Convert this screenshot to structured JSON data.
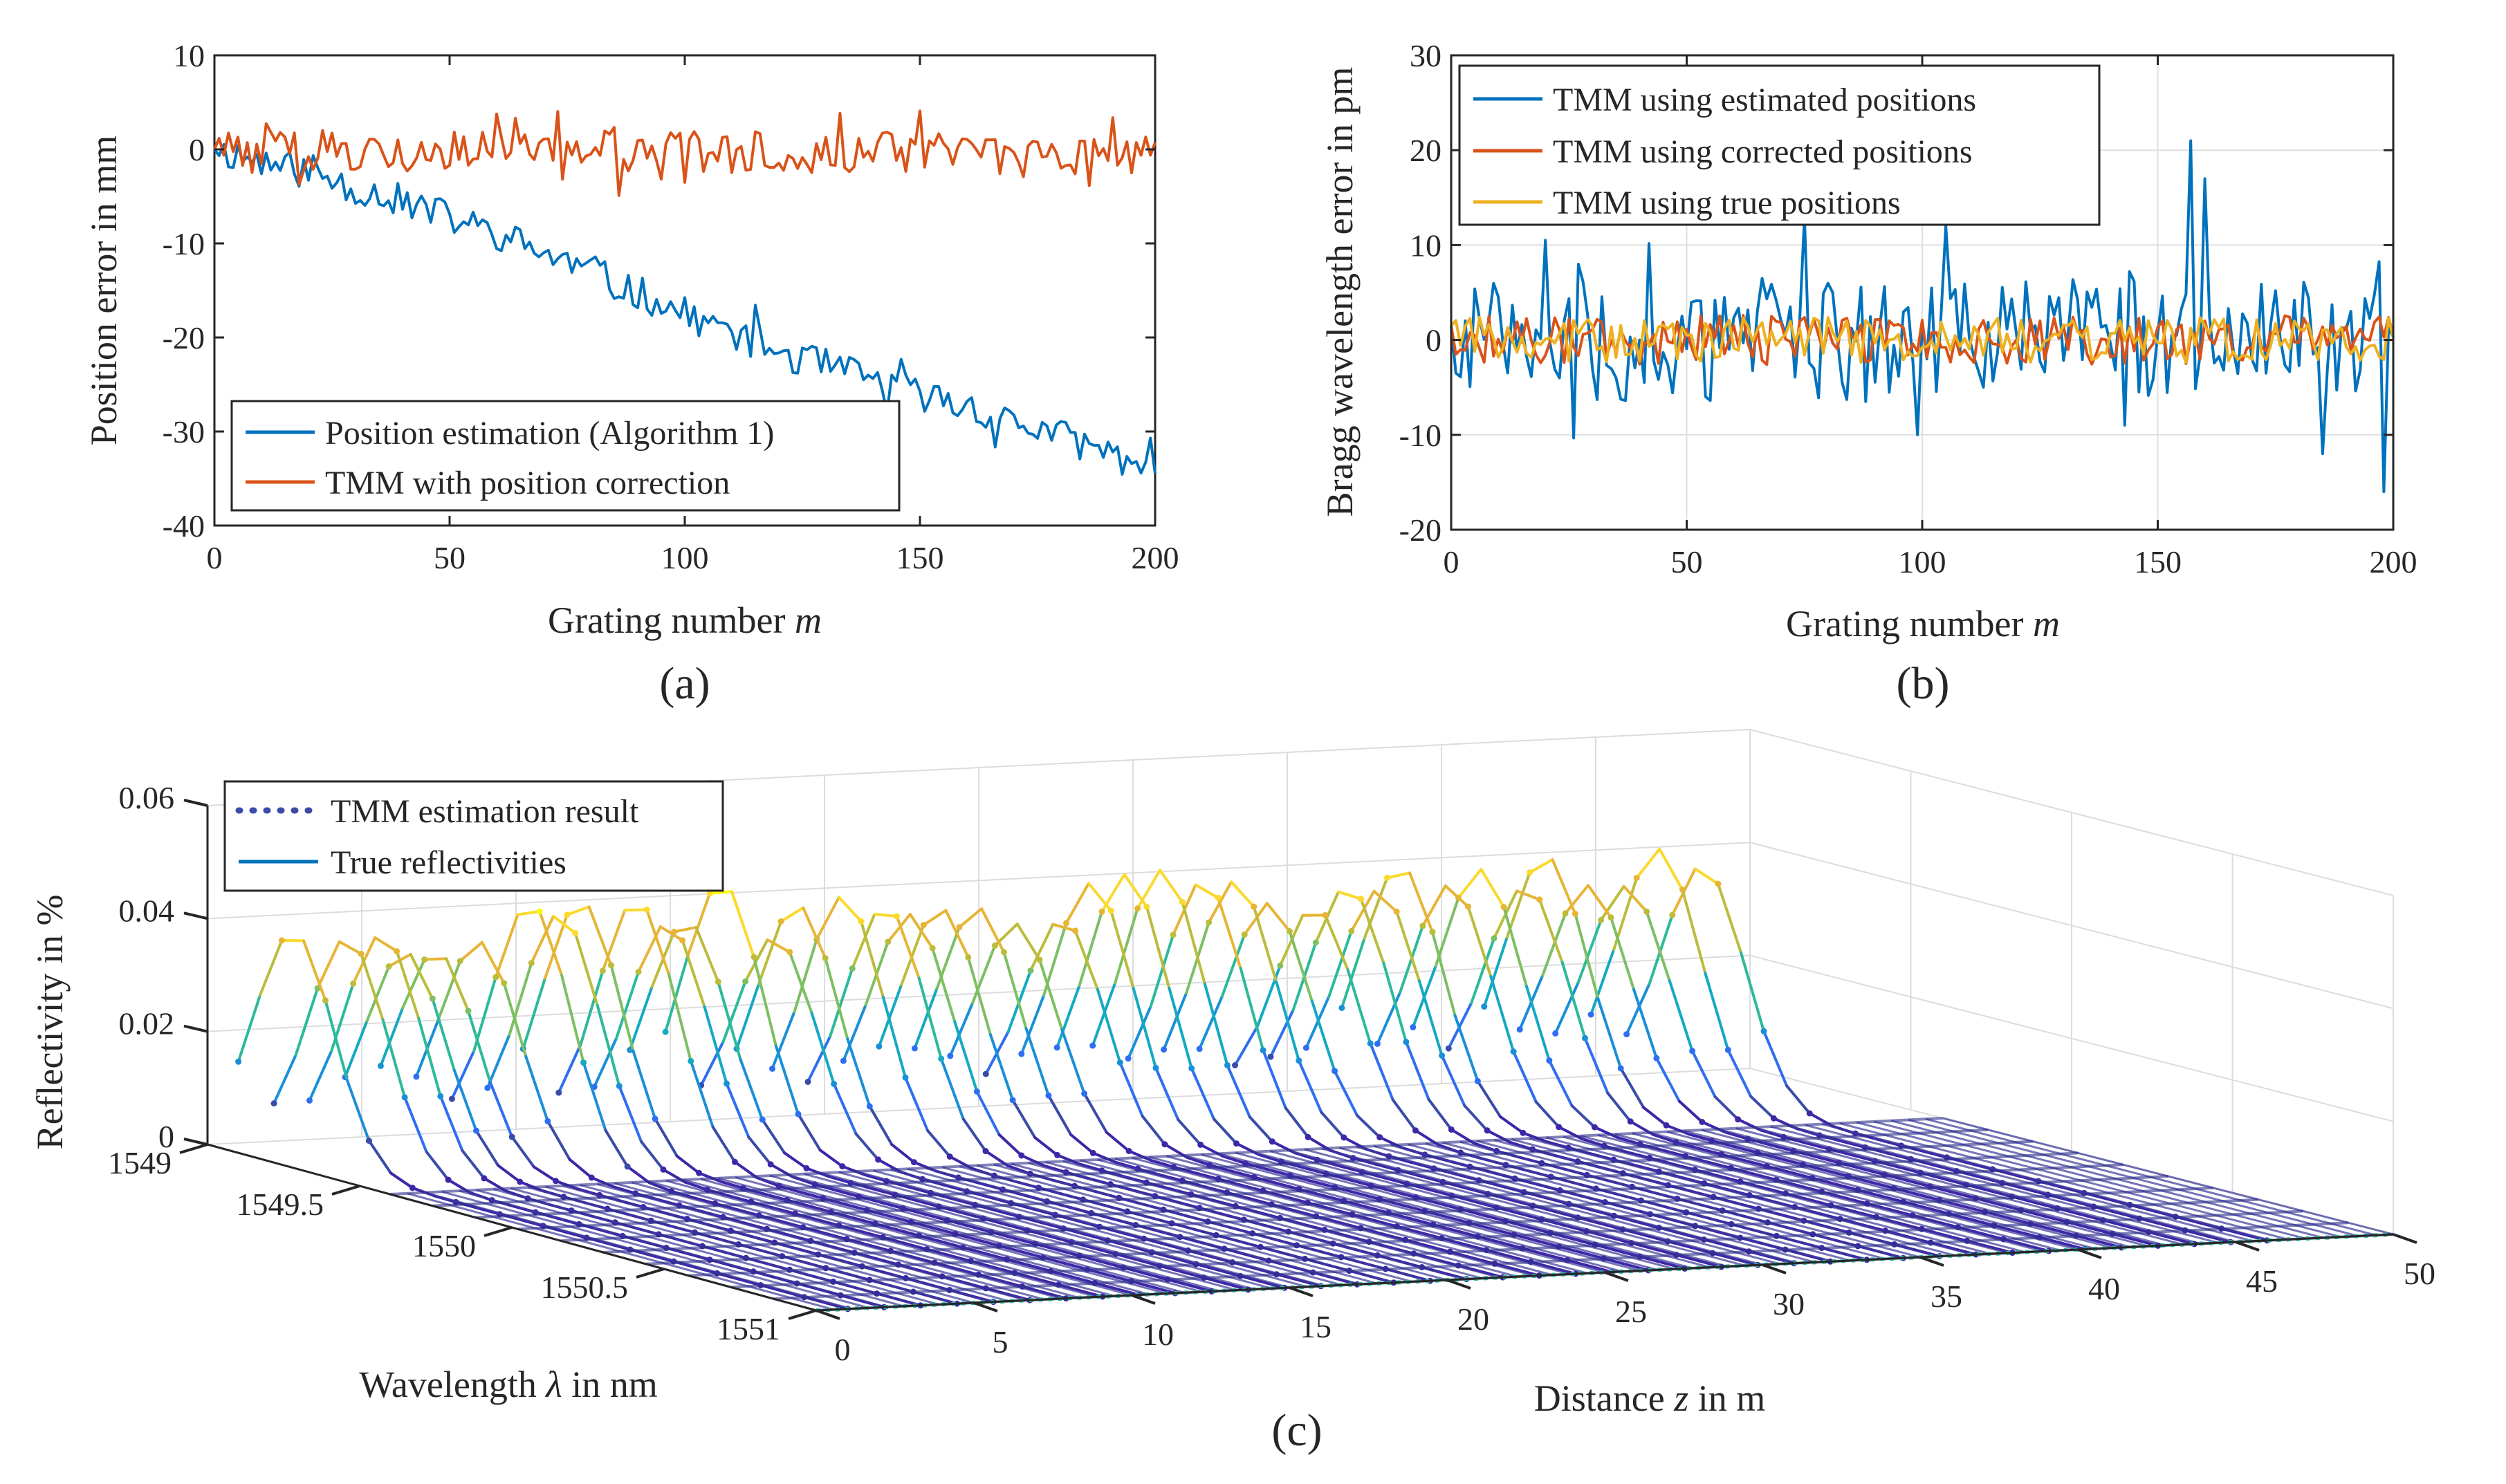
{
  "chart_data": [
    {
      "id": "a",
      "type": "line",
      "caption": "(a)",
      "xlabel": "Grating number",
      "xlabel_var": "m",
      "ylabel": "Position error in mm",
      "xlim": [
        0,
        200
      ],
      "ylim": [
        -40,
        10
      ],
      "xticks": [
        "0",
        "50",
        "100",
        "150",
        "200"
      ],
      "yticks": [
        "10",
        "0",
        "-10",
        "-20",
        "-30",
        "-40"
      ],
      "grid": false,
      "legend_location": "bottom-left",
      "series": [
        {
          "name": "Position estimation (Algorithm 1)",
          "color": "#0072BD",
          "trend": {
            "x": [
              0,
              20,
              40,
              60,
              80,
              100,
              120,
              140,
              160,
              180,
              200
            ],
            "y": [
              0,
              -2.5,
              -5.5,
              -9,
              -13,
              -17.5,
              -21.5,
              -24.5,
              -27.5,
              -30.5,
              -34
            ]
          },
          "noise_amplitude": 1.8
        },
        {
          "name": "TMM with position correction",
          "color": "#D95319",
          "trend": {
            "x": [
              0,
              200
            ],
            "y": [
              0,
              -0.5
            ]
          },
          "noise_amplitude": 2.2
        }
      ]
    },
    {
      "id": "b",
      "type": "line",
      "caption": "(b)",
      "xlabel": "Grating number",
      "xlabel_var": "m",
      "ylabel": "Bragg wavelength error in pm",
      "xlim": [
        0,
        200
      ],
      "ylim": [
        -20,
        30
      ],
      "xticks": [
        "0",
        "50",
        "100",
        "150",
        "200"
      ],
      "yticks": [
        "30",
        "20",
        "10",
        "0",
        "-10",
        "-20"
      ],
      "grid": true,
      "legend_location": "top-left",
      "series": [
        {
          "name": "TMM using estimated positions",
          "color": "#0072BD",
          "noise_amplitude": 6.5,
          "peaks": [
            [
              75,
              13
            ],
            [
              105,
              12
            ],
            [
              157,
              21
            ],
            [
              160,
              17
            ],
            [
              185,
              -12
            ],
            [
              198,
              -16
            ]
          ]
        },
        {
          "name": "TMM using corrected positions",
          "color": "#D95319",
          "noise_amplitude": 2.6
        },
        {
          "name": "TMM using true positions",
          "color": "#EDB120",
          "noise_amplitude": 2.4
        }
      ]
    },
    {
      "id": "c",
      "type": "line",
      "caption": "(c)",
      "title": "",
      "xlabel": "Distance",
      "xlabel_var": "z",
      "xlabel_unit": "in m",
      "ylabel": "Wavelength",
      "ylabel_var": "λ",
      "ylabel_unit": "in nm",
      "zlabel": "Reflectivity in %",
      "xlim": [
        0,
        50
      ],
      "ylim": [
        1549,
        1551
      ],
      "zlim": [
        0,
        0.06
      ],
      "xticks": [
        "0",
        "5",
        "10",
        "15",
        "20",
        "25",
        "30",
        "35",
        "40",
        "45",
        "50"
      ],
      "yticks": [
        "1549",
        "1549.5",
        "1550",
        "1550.5",
        "1551"
      ],
      "zticks": [
        "0",
        "0.02",
        "0.04",
        "0.06"
      ],
      "grating_count": 40,
      "peak_reflectivity_range": [
        0.035,
        0.045
      ],
      "first_peak_reflectivity": 0.04,
      "legend_location": "top-left",
      "series": [
        {
          "name": "TMM estimation result",
          "style": "dotted",
          "color": "#3B4BA8"
        },
        {
          "name": "True reflectivities",
          "style": "solid",
          "color": "#0072BD"
        }
      ],
      "colormap": [
        "#3E26A8",
        "#3B4BA8",
        "#2E6EF2",
        "#1A8FD8",
        "#15A9C2",
        "#2DB99A",
        "#7DBF63",
        "#BBBC3C",
        "#E6B536",
        "#FBD92C",
        "#F9FB0E"
      ]
    }
  ]
}
